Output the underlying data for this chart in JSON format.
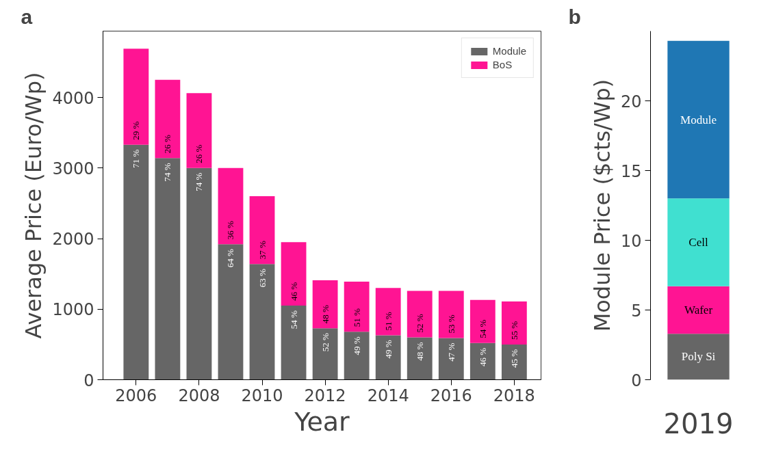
{
  "chart_data": [
    {
      "type": "bar",
      "title": "a",
      "stacked": true,
      "xlabel": "Year",
      "ylabel": "Average Price (Euro/Wp)",
      "x": [
        2006,
        2007,
        2008,
        2009,
        2010,
        2011,
        2012,
        2013,
        2014,
        2015,
        2016,
        2017,
        2018
      ],
      "xlim": [
        2004.95,
        2018.85
      ],
      "xticks": [
        2006,
        2008,
        2010,
        2012,
        2014,
        2016,
        2018
      ],
      "ylim": [
        0,
        4940
      ],
      "yticks": [
        0,
        1000,
        2000,
        3000,
        4000
      ],
      "legend": "top right",
      "series": [
        {
          "name": "Module",
          "color": "#666666",
          "values": [
            3330,
            3140,
            3000,
            1920,
            1640,
            1050,
            730,
            680,
            630,
            600,
            590,
            520,
            500
          ]
        },
        {
          "name": "BoS",
          "color": "#ff1493",
          "values": [
            1360,
            1110,
            1060,
            1080,
            960,
            900,
            680,
            710,
            670,
            660,
            670,
            610,
            610
          ]
        }
      ],
      "annotations": [
        {
          "text": "71 %",
          "x": 2006,
          "y": 3330
        },
        {
          "text": "74 %",
          "x": 2007,
          "y": 3140
        },
        {
          "text": "74 %",
          "x": 2008,
          "y": 3000
        },
        {
          "text": "64 %",
          "x": 2009,
          "y": 1920
        },
        {
          "text": "63 %",
          "x": 2010,
          "y": 1640
        },
        {
          "text": "54 %",
          "x": 2011,
          "y": 1050
        },
        {
          "text": "52 %",
          "x": 2012,
          "y": 730
        },
        {
          "text": "49 %",
          "x": 2013,
          "y": 680
        },
        {
          "text": "49 %",
          "x": 2014,
          "y": 630
        },
        {
          "text": "48 %",
          "x": 2015,
          "y": 600
        },
        {
          "text": "47 %",
          "x": 2016,
          "y": 590
        },
        {
          "text": "46 %",
          "x": 2017,
          "y": 520
        },
        {
          "text": "45 %",
          "x": 2018,
          "y": 500
        },
        {
          "text": "29 %",
          "x": 2006,
          "y": 3330
        },
        {
          "text": "26 %",
          "x": 2007,
          "y": 3140
        },
        {
          "text": "26 %",
          "x": 2008,
          "y": 3000
        },
        {
          "text": "36 %",
          "x": 2009,
          "y": 1920
        },
        {
          "text": "37 %",
          "x": 2010,
          "y": 1640
        },
        {
          "text": "46 %",
          "x": 2011,
          "y": 1050
        },
        {
          "text": "48 %",
          "x": 2012,
          "y": 730
        },
        {
          "text": "51 %",
          "x": 2013,
          "y": 680
        },
        {
          "text": "51 %",
          "x": 2014,
          "y": 630
        },
        {
          "text": "52 %",
          "x": 2015,
          "y": 600
        },
        {
          "text": "53 %",
          "x": 2016,
          "y": 590
        },
        {
          "text": "54 %",
          "x": 2017,
          "y": 520
        },
        {
          "text": "55 %",
          "x": 2018,
          "y": 500
        }
      ]
    },
    {
      "type": "bar",
      "title": "b",
      "stacked": true,
      "ylabel": "Module Price ($cts/Wp)",
      "categories": [
        "2019"
      ],
      "ylim": [
        0,
        25
      ],
      "yticks": [
        0,
        5,
        10,
        15,
        20
      ],
      "series": [
        {
          "name": "Poly Si",
          "color": "#666666",
          "values": [
            3.3
          ]
        },
        {
          "name": "Wafer",
          "color": "#ff1493",
          "values": [
            3.4
          ]
        },
        {
          "name": "Cell",
          "color": "#40e0d0",
          "values": [
            6.3
          ]
        },
        {
          "name": "Module",
          "color": "#1f77b4",
          "values": [
            11.3
          ]
        }
      ]
    }
  ]
}
